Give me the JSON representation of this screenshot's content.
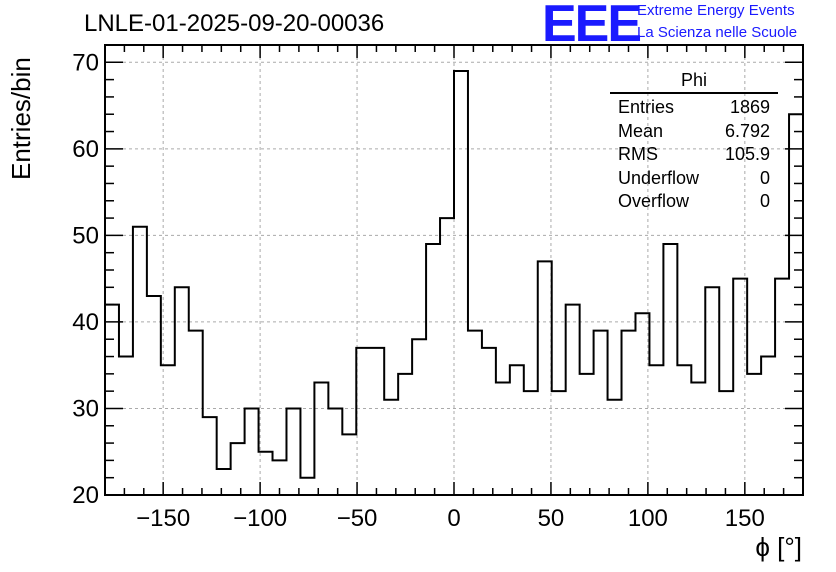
{
  "title": "LNLE-01-2025-09-20-00036",
  "logo": {
    "mark": "EEE",
    "line1": "Extreme Energy Events",
    "line2": "La Scienza nelle Scuole",
    "color": "#1a1aff"
  },
  "stats": {
    "name": "Phi",
    "rows": [
      {
        "label": "Entries",
        "value": "1869"
      },
      {
        "label": "Mean",
        "value": "6.792"
      },
      {
        "label": "RMS",
        "value": "105.9"
      },
      {
        "label": "Underflow",
        "value": "0"
      },
      {
        "label": "Overflow",
        "value": "0"
      }
    ]
  },
  "chart_data": {
    "type": "histogram",
    "title": "LNLE-01-2025-09-20-00036",
    "xlabel": "ϕ [°]",
    "ylabel": "Entries/bin",
    "xlim": [
      -180,
      180
    ],
    "ylim": [
      20,
      72
    ],
    "bin_width": 7.2,
    "xticks": [
      -150,
      -100,
      -50,
      0,
      50,
      100,
      150
    ],
    "xtick_labels": [
      "−150",
      "−100",
      "−50",
      "0",
      "50",
      "100",
      "150"
    ],
    "yticks": [
      20,
      30,
      40,
      50,
      60,
      70
    ],
    "ytick_labels": [
      "20",
      "30",
      "40",
      "50",
      "60",
      "70"
    ],
    "grid": true,
    "values": [
      42,
      36,
      51,
      43,
      35,
      44,
      39,
      29,
      23,
      26,
      30,
      25,
      24,
      30,
      22,
      33,
      30,
      27,
      37,
      37,
      31,
      34,
      38,
      49,
      52,
      69,
      39,
      37,
      33,
      35,
      32,
      47,
      32,
      42,
      34,
      39,
      31,
      39,
      41,
      35,
      49,
      35,
      33,
      44,
      32,
      45,
      34,
      36,
      45,
      64
    ]
  }
}
